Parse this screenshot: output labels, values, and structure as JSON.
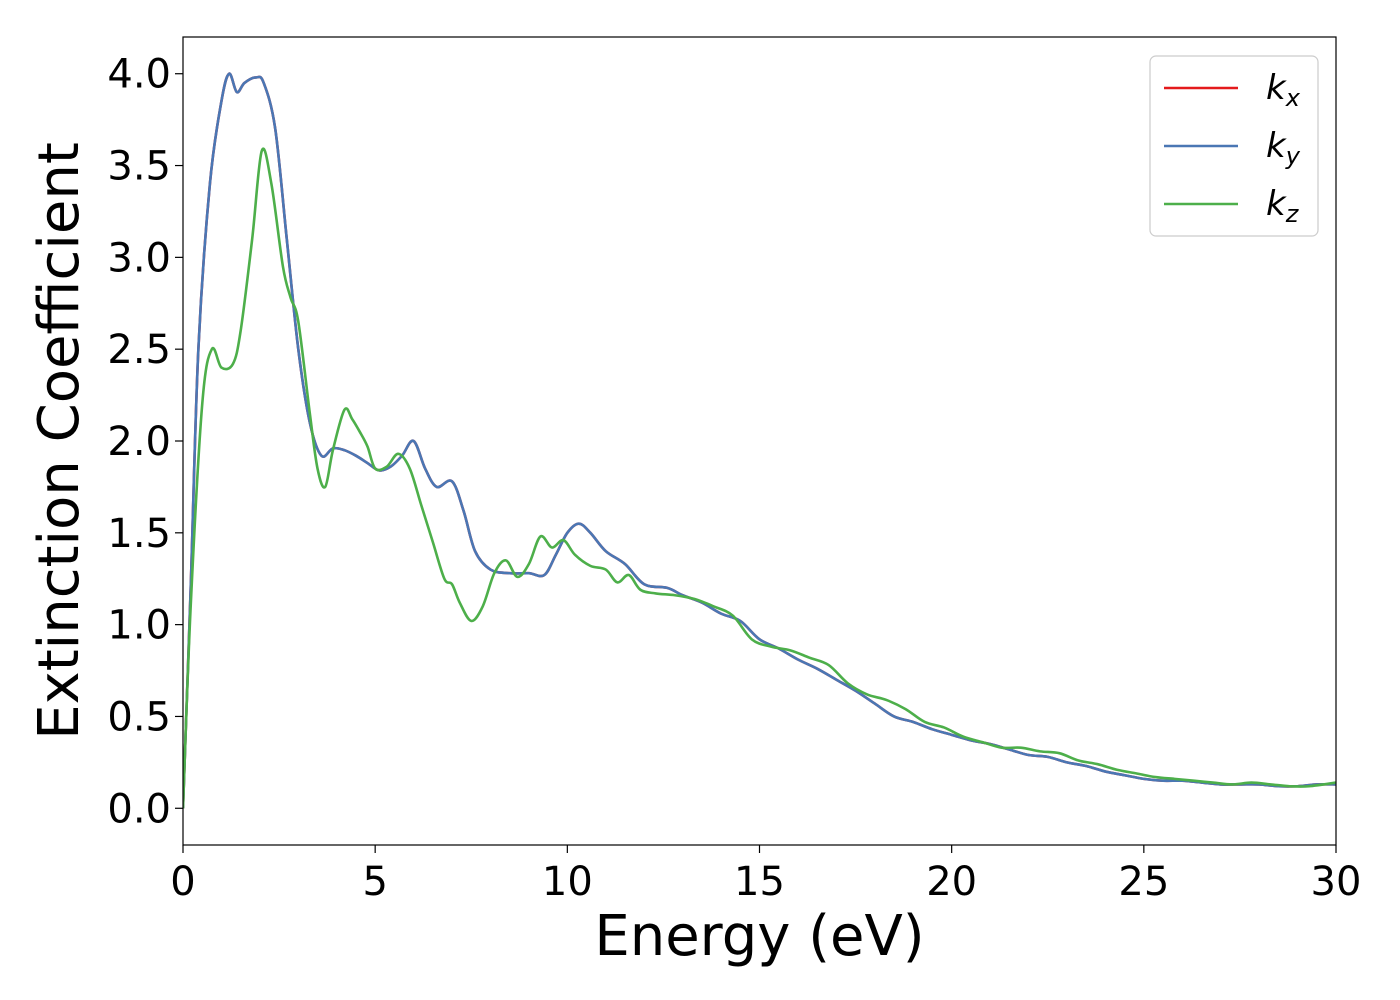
{
  "chart_data": {
    "type": "line",
    "title": "",
    "xlabel": "Energy (eV)",
    "ylabel": "Extinction Coefficient",
    "xlim": [
      0,
      30
    ],
    "ylim": [
      -0.2,
      4.2
    ],
    "xticks": [
      0,
      5,
      10,
      15,
      20,
      25,
      30
    ],
    "xtick_labels": [
      "0",
      "5",
      "10",
      "15",
      "20",
      "25",
      "30"
    ],
    "yticks": [
      0.0,
      0.5,
      1.0,
      1.5,
      2.0,
      2.5,
      3.0,
      3.5,
      4.0
    ],
    "ytick_labels": [
      "0.0",
      "0.5",
      "1.0",
      "1.5",
      "2.0",
      "2.5",
      "3.0",
      "3.5",
      "4.0"
    ],
    "grid": false,
    "legend_position": "top-right",
    "series": [
      {
        "name": "k",
        "subscript": "x",
        "color": "#e41a1c",
        "x": [
          0,
          0.2,
          0.4,
          0.7,
          1.0,
          1.2,
          1.4,
          1.6,
          1.9,
          2.1,
          2.4,
          2.7,
          3.0,
          3.3,
          3.6,
          3.9,
          4.2,
          4.5,
          4.8,
          5.1,
          5.4,
          5.7,
          6.0,
          6.3,
          6.6,
          7.0,
          7.3,
          7.6,
          8.0,
          8.5,
          9.0,
          9.4,
          9.7,
          10.0,
          10.3,
          10.6,
          11.0,
          11.5,
          12.0,
          12.6,
          13.0,
          13.5,
          14.0,
          14.5,
          15.0,
          15.5,
          16.0,
          16.5,
          17.0,
          17.5,
          18.0,
          18.5,
          19.0,
          19.5,
          20.0,
          20.5,
          21.0,
          21.5,
          22.0,
          22.5,
          23.0,
          23.5,
          24.0,
          24.5,
          25.0,
          25.5,
          26.0,
          26.5,
          27.0,
          27.5,
          28.0,
          28.5,
          29.0,
          29.5,
          30.0
        ],
        "values": [
          0.0,
          1.2,
          2.5,
          3.4,
          3.85,
          4.0,
          3.9,
          3.95,
          3.98,
          3.95,
          3.7,
          3.1,
          2.5,
          2.1,
          1.92,
          1.96,
          1.95,
          1.92,
          1.88,
          1.84,
          1.86,
          1.92,
          2.0,
          1.85,
          1.75,
          1.78,
          1.62,
          1.4,
          1.3,
          1.28,
          1.28,
          1.27,
          1.38,
          1.5,
          1.55,
          1.5,
          1.4,
          1.33,
          1.22,
          1.2,
          1.16,
          1.12,
          1.06,
          1.02,
          0.92,
          0.87,
          0.81,
          0.76,
          0.7,
          0.64,
          0.57,
          0.5,
          0.47,
          0.43,
          0.4,
          0.37,
          0.35,
          0.32,
          0.29,
          0.28,
          0.25,
          0.23,
          0.2,
          0.18,
          0.16,
          0.15,
          0.15,
          0.14,
          0.13,
          0.13,
          0.13,
          0.12,
          0.12,
          0.13,
          0.13
        ]
      },
      {
        "name": "k",
        "subscript": "y",
        "color": "#4a77b4",
        "x": [
          0,
          0.2,
          0.4,
          0.7,
          1.0,
          1.2,
          1.4,
          1.6,
          1.9,
          2.1,
          2.4,
          2.7,
          3.0,
          3.3,
          3.6,
          3.9,
          4.2,
          4.5,
          4.8,
          5.1,
          5.4,
          5.7,
          6.0,
          6.3,
          6.6,
          7.0,
          7.3,
          7.6,
          8.0,
          8.5,
          9.0,
          9.4,
          9.7,
          10.0,
          10.3,
          10.6,
          11.0,
          11.5,
          12.0,
          12.6,
          13.0,
          13.5,
          14.0,
          14.5,
          15.0,
          15.5,
          16.0,
          16.5,
          17.0,
          17.5,
          18.0,
          18.5,
          19.0,
          19.5,
          20.0,
          20.5,
          21.0,
          21.5,
          22.0,
          22.5,
          23.0,
          23.5,
          24.0,
          24.5,
          25.0,
          25.5,
          26.0,
          26.5,
          27.0,
          27.5,
          28.0,
          28.5,
          29.0,
          29.5,
          30.0
        ],
        "values": [
          0.0,
          1.2,
          2.5,
          3.4,
          3.85,
          4.0,
          3.9,
          3.95,
          3.98,
          3.95,
          3.7,
          3.1,
          2.5,
          2.1,
          1.92,
          1.96,
          1.95,
          1.92,
          1.88,
          1.84,
          1.86,
          1.92,
          2.0,
          1.85,
          1.75,
          1.78,
          1.62,
          1.4,
          1.3,
          1.28,
          1.28,
          1.27,
          1.38,
          1.5,
          1.55,
          1.5,
          1.4,
          1.33,
          1.22,
          1.2,
          1.16,
          1.12,
          1.06,
          1.02,
          0.92,
          0.87,
          0.81,
          0.76,
          0.7,
          0.64,
          0.57,
          0.5,
          0.47,
          0.43,
          0.4,
          0.37,
          0.35,
          0.32,
          0.29,
          0.28,
          0.25,
          0.23,
          0.2,
          0.18,
          0.16,
          0.15,
          0.15,
          0.14,
          0.13,
          0.13,
          0.13,
          0.12,
          0.12,
          0.13,
          0.13
        ]
      },
      {
        "name": "k",
        "subscript": "z",
        "color": "#4daf4a",
        "x": [
          0,
          0.2,
          0.5,
          0.75,
          1.0,
          1.3,
          1.5,
          1.8,
          2.05,
          2.3,
          2.6,
          2.8,
          3.0,
          3.3,
          3.5,
          3.7,
          3.9,
          4.2,
          4.4,
          4.6,
          4.8,
          5.0,
          5.3,
          5.6,
          5.9,
          6.2,
          6.5,
          6.8,
          7.0,
          7.2,
          7.5,
          7.8,
          8.1,
          8.4,
          8.7,
          9.0,
          9.3,
          9.6,
          9.9,
          10.2,
          10.6,
          11.0,
          11.3,
          11.6,
          11.9,
          12.3,
          12.8,
          13.3,
          13.8,
          14.3,
          14.8,
          15.3,
          15.8,
          16.3,
          16.8,
          17.3,
          17.8,
          18.3,
          18.8,
          19.3,
          19.8,
          20.3,
          20.8,
          21.3,
          21.8,
          22.3,
          22.8,
          23.3,
          23.8,
          24.3,
          24.8,
          25.3,
          25.8,
          26.3,
          26.8,
          27.3,
          27.8,
          28.3,
          28.8,
          29.3,
          30.0
        ],
        "values": [
          0.0,
          1.1,
          2.2,
          2.5,
          2.4,
          2.42,
          2.6,
          3.1,
          3.58,
          3.4,
          2.95,
          2.78,
          2.65,
          2.15,
          1.85,
          1.75,
          1.95,
          2.17,
          2.12,
          2.05,
          1.97,
          1.85,
          1.86,
          1.93,
          1.85,
          1.65,
          1.45,
          1.25,
          1.22,
          1.12,
          1.02,
          1.1,
          1.28,
          1.35,
          1.26,
          1.33,
          1.48,
          1.42,
          1.46,
          1.38,
          1.32,
          1.3,
          1.23,
          1.27,
          1.19,
          1.17,
          1.16,
          1.14,
          1.1,
          1.05,
          0.92,
          0.88,
          0.86,
          0.82,
          0.78,
          0.68,
          0.62,
          0.59,
          0.54,
          0.47,
          0.44,
          0.39,
          0.36,
          0.33,
          0.33,
          0.31,
          0.3,
          0.26,
          0.24,
          0.21,
          0.19,
          0.17,
          0.16,
          0.15,
          0.14,
          0.13,
          0.14,
          0.13,
          0.12,
          0.12,
          0.14
        ]
      }
    ]
  }
}
